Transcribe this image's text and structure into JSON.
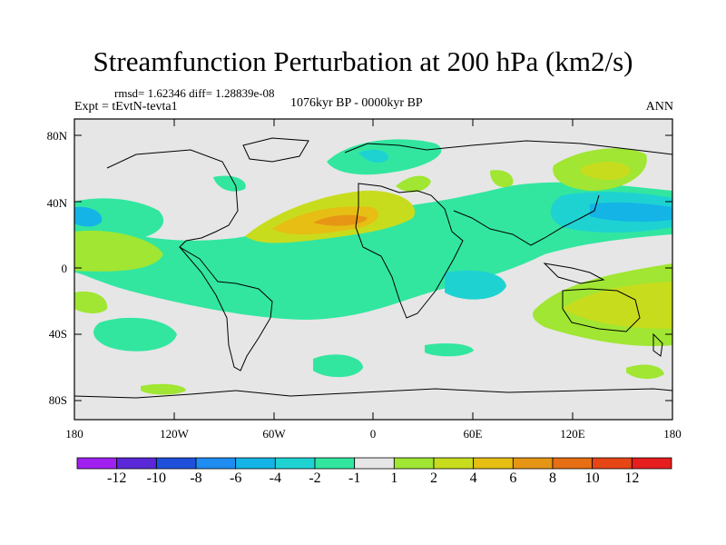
{
  "title": "Streamfunction Perturbation at 200 hPa (km2/s)",
  "stats": "rmsd= 1.62346 diff= 1.28839e-08",
  "experiment": "Expt = tEvtN-tevta1",
  "period": "1076kyr BP - 0000kyr BP",
  "season": "ANN",
  "lat_labels": [
    "80N",
    "40N",
    "0",
    "40S",
    "80S"
  ],
  "lon_labels": [
    "180",
    "120W",
    "60W",
    "0",
    "60E",
    "120E",
    "180"
  ],
  "colorbar": {
    "labels": [
      "-12",
      "-10",
      "-8",
      "-6",
      "-4",
      "-2",
      "-1",
      "1",
      "2",
      "4",
      "6",
      "8",
      "10",
      "12"
    ],
    "colors": [
      "#a020f0",
      "#5a28d8",
      "#1e50dc",
      "#1e8cf0",
      "#14b4e6",
      "#1ed2d2",
      "#32e6a0",
      "#e6e6e6",
      "#a0e632",
      "#c8dc1e",
      "#e6be14",
      "#e69614",
      "#e66e14",
      "#e64614",
      "#e61e1e"
    ]
  }
}
